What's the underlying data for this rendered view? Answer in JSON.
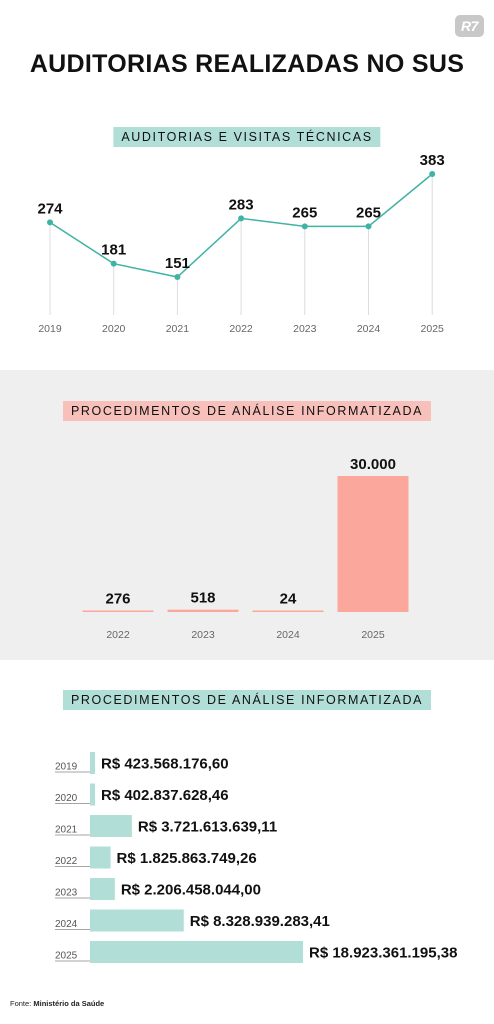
{
  "brand": {
    "logo_text": "R7"
  },
  "title": "AUDITORIAS REALIZADAS NO SUS",
  "source": {
    "label": "Fonte:",
    "name": "Ministério da Saúde"
  },
  "colors": {
    "teal": "#3fb3a4",
    "teal_light": "#b2ded8",
    "salmon": "#fca79c",
    "salmon_light": "#f8c0ba",
    "band_gray": "#efefef"
  },
  "chart_data": [
    {
      "type": "line",
      "title": "AUDITORIAS E VISITAS TÉCNICAS",
      "x": [
        "2019",
        "2020",
        "2021",
        "2022",
        "2023",
        "2024",
        "2025"
      ],
      "series": [
        {
          "values": [
            274,
            181,
            151,
            283,
            265,
            265,
            383
          ]
        }
      ],
      "data_labels": [
        "274",
        "181",
        "151",
        "283",
        "265",
        "265",
        "383"
      ],
      "ylim": [
        0,
        383
      ],
      "grid": false
    },
    {
      "type": "bar",
      "title": "PROCEDIMENTOS DE ANÁLISE INFORMATIZADA",
      "categories": [
        "2022",
        "2023",
        "2024",
        "2025"
      ],
      "values": [
        276,
        518,
        24,
        30000
      ],
      "data_labels": [
        "276",
        "518",
        "24",
        "30.000"
      ],
      "ylim": [
        0,
        30000
      ]
    },
    {
      "type": "bar",
      "orientation": "horizontal",
      "title": "PROCEDIMENTOS DE ANÁLISE INFORMATIZADA",
      "categories": [
        "2019",
        "2020",
        "2021",
        "2022",
        "2023",
        "2024",
        "2025"
      ],
      "values": [
        423568176.6,
        402837628.46,
        3721613639.11,
        1825863749.26,
        2206458044.0,
        8328939283.41,
        18923361195.38
      ],
      "data_labels": [
        "R$ 423.568.176,60",
        "R$ 402.837.628,46",
        "R$ 3.721.613.639,11",
        "R$ 1.825.863.749,26",
        "R$ 2.206.458.044,00",
        "R$ 8.328.939.283,41",
        "R$ 18.923.361.195,38"
      ]
    }
  ]
}
